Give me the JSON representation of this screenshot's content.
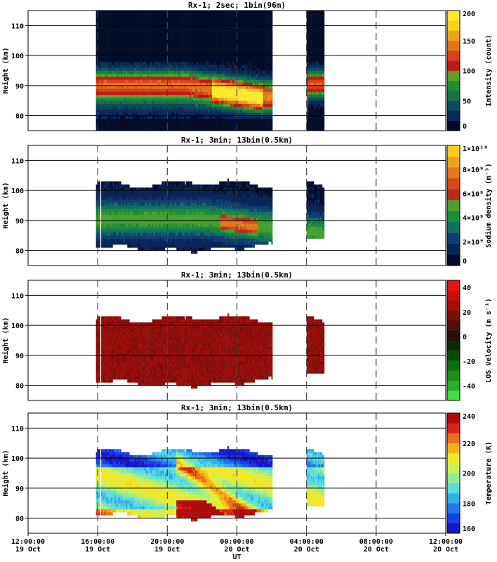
{
  "x_axis": {
    "label": "UT",
    "ticks": [
      {
        "time": "12:00:00",
        "date": "19 Oct",
        "hours": 0
      },
      {
        "time": "16:00:00",
        "date": "19 Oct",
        "hours": 4
      },
      {
        "time": "20:00:00",
        "date": "19 Oct",
        "hours": 8
      },
      {
        "time": "00:00:00",
        "date": "20 Oct",
        "hours": 12
      },
      {
        "time": "04:00:00",
        "date": "20 Oct",
        "hours": 16
      },
      {
        "time": "08:00:00",
        "date": "20 Oct",
        "hours": 20
      },
      {
        "time": "12:00:00",
        "date": "20 Oct",
        "hours": 24
      }
    ]
  },
  "chart_data": [
    {
      "type": "heatmap",
      "title": "Rx-1;  2sec; 1bin(96m)",
      "ylabel": "Height (km)",
      "yticks": [
        "80",
        "90",
        "100",
        "110"
      ],
      "ylim": [
        75,
        115
      ],
      "colorbar": {
        "label": "Intensity (count)",
        "ticks": [
          "0",
          "50",
          "100",
          "150",
          "200"
        ],
        "range": [
          0,
          200
        ]
      },
      "data_segments_hours": [
        [
          3.9,
          14.0
        ],
        [
          16.0,
          17.0
        ]
      ],
      "features": {
        "layer_peak_km": 90,
        "layer_bottom_km": 80,
        "layer_top_km": 97,
        "max_count": 200
      }
    },
    {
      "type": "heatmap",
      "title": "Rx-1; 3min; 13bin(0.5km)",
      "ylabel": "Height (km)",
      "yticks": [
        "80",
        "90",
        "100",
        "110"
      ],
      "ylim": [
        75,
        115
      ],
      "colorbar": {
        "label": "Sodium density (m⁻³)",
        "ticks": [
          "0",
          "2×10⁹",
          "4×10⁹",
          "6×10⁹",
          "8×10⁹",
          "1×10¹⁰"
        ],
        "range": [
          0,
          10000000000
        ]
      },
      "data_segments_hours": [
        [
          3.9,
          4.1
        ],
        [
          4.2,
          14.0
        ],
        [
          16.0,
          17.0
        ]
      ],
      "features": {
        "layer_peak_km": 90,
        "layer_bottom_km": 81,
        "layer_top_km": 102
      }
    },
    {
      "type": "heatmap",
      "title": "Rx-1; 3min; 13bin(0.5km)",
      "ylabel": "Height (km)",
      "yticks": [
        "80",
        "90",
        "100",
        "110"
      ],
      "ylim": [
        75,
        115
      ],
      "colorbar": {
        "label": "LOS Velocity (m s⁻¹)",
        "ticks": [
          "40",
          "20",
          "0",
          "-20",
          "-40"
        ],
        "range": [
          -50,
          50
        ]
      },
      "data_segments_hours": [
        [
          3.9,
          4.1
        ],
        [
          4.2,
          14.0
        ],
        [
          16.0,
          17.0
        ]
      ],
      "features": {
        "typical_velocity_ms": 10
      }
    },
    {
      "type": "heatmap",
      "title": "Rx-1; 3min; 13bin(0.5km)",
      "ylabel": "Height (km)",
      "yticks": [
        "80",
        "90",
        "100",
        "110"
      ],
      "ylim": [
        75,
        115
      ],
      "colorbar": {
        "label": "Temperature (K)",
        "ticks": [
          "160",
          "180",
          "200",
          "220",
          "240"
        ],
        "range": [
          150,
          250
        ]
      },
      "data_segments_hours": [
        [
          3.9,
          4.1
        ],
        [
          4.2,
          14.0
        ],
        [
          16.0,
          17.0
        ]
      ],
      "features": {
        "cold_top_K": 175,
        "warm_bottom_K": 240
      }
    }
  ]
}
